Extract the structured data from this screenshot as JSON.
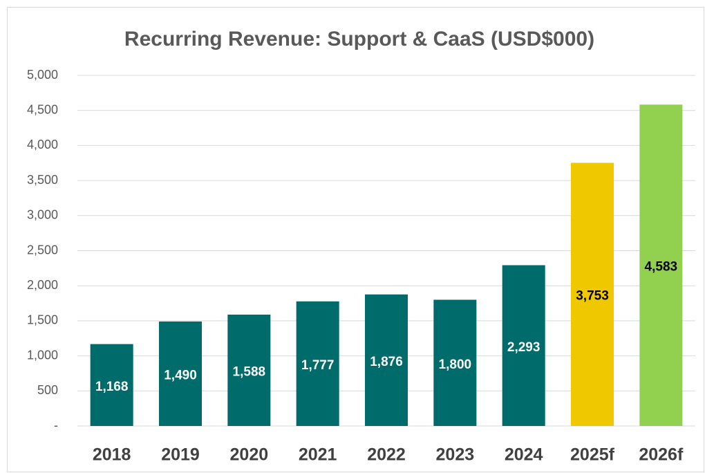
{
  "chart_data": {
    "type": "bar",
    "title": "Recurring Revenue: Support & CaaS (USD$000)",
    "categories": [
      "2018",
      "2019",
      "2020",
      "2021",
      "2022",
      "2023",
      "2024",
      "2025f",
      "2026f"
    ],
    "values": [
      1168,
      1490,
      1588,
      1777,
      1876,
      1800,
      2293,
      3753,
      4583
    ],
    "value_labels": [
      "1,168",
      "1,490",
      "1,588",
      "1,777",
      "1,876",
      "1,800",
      "2,293",
      "3,753",
      "4,583"
    ],
    "colors": [
      "#006b6b",
      "#006b6b",
      "#006b6b",
      "#006b6b",
      "#006b6b",
      "#006b6b",
      "#006b6b",
      "#f0c800",
      "#92d050"
    ],
    "label_colors": [
      "#ffffff",
      "#ffffff",
      "#ffffff",
      "#ffffff",
      "#ffffff",
      "#ffffff",
      "#ffffff",
      "#000000",
      "#000000"
    ],
    "ylim": [
      0,
      5000
    ],
    "yticks": [
      {
        "value": 0,
        "label": "-"
      },
      500,
      {
        "value": 1000,
        "label": "1,000"
      },
      {
        "value": 1500,
        "label": "1,500"
      },
      {
        "value": 2000,
        "label": "2,000"
      },
      {
        "value": 2500,
        "label": "2,500"
      },
      {
        "value": 3000,
        "label": "3,000"
      },
      {
        "value": 3500,
        "label": "3,500"
      },
      {
        "value": 4000,
        "label": "4,000"
      },
      {
        "value": 4500,
        "label": "4,500"
      },
      {
        "value": 5000,
        "label": "5,000"
      }
    ],
    "grid": true
  }
}
